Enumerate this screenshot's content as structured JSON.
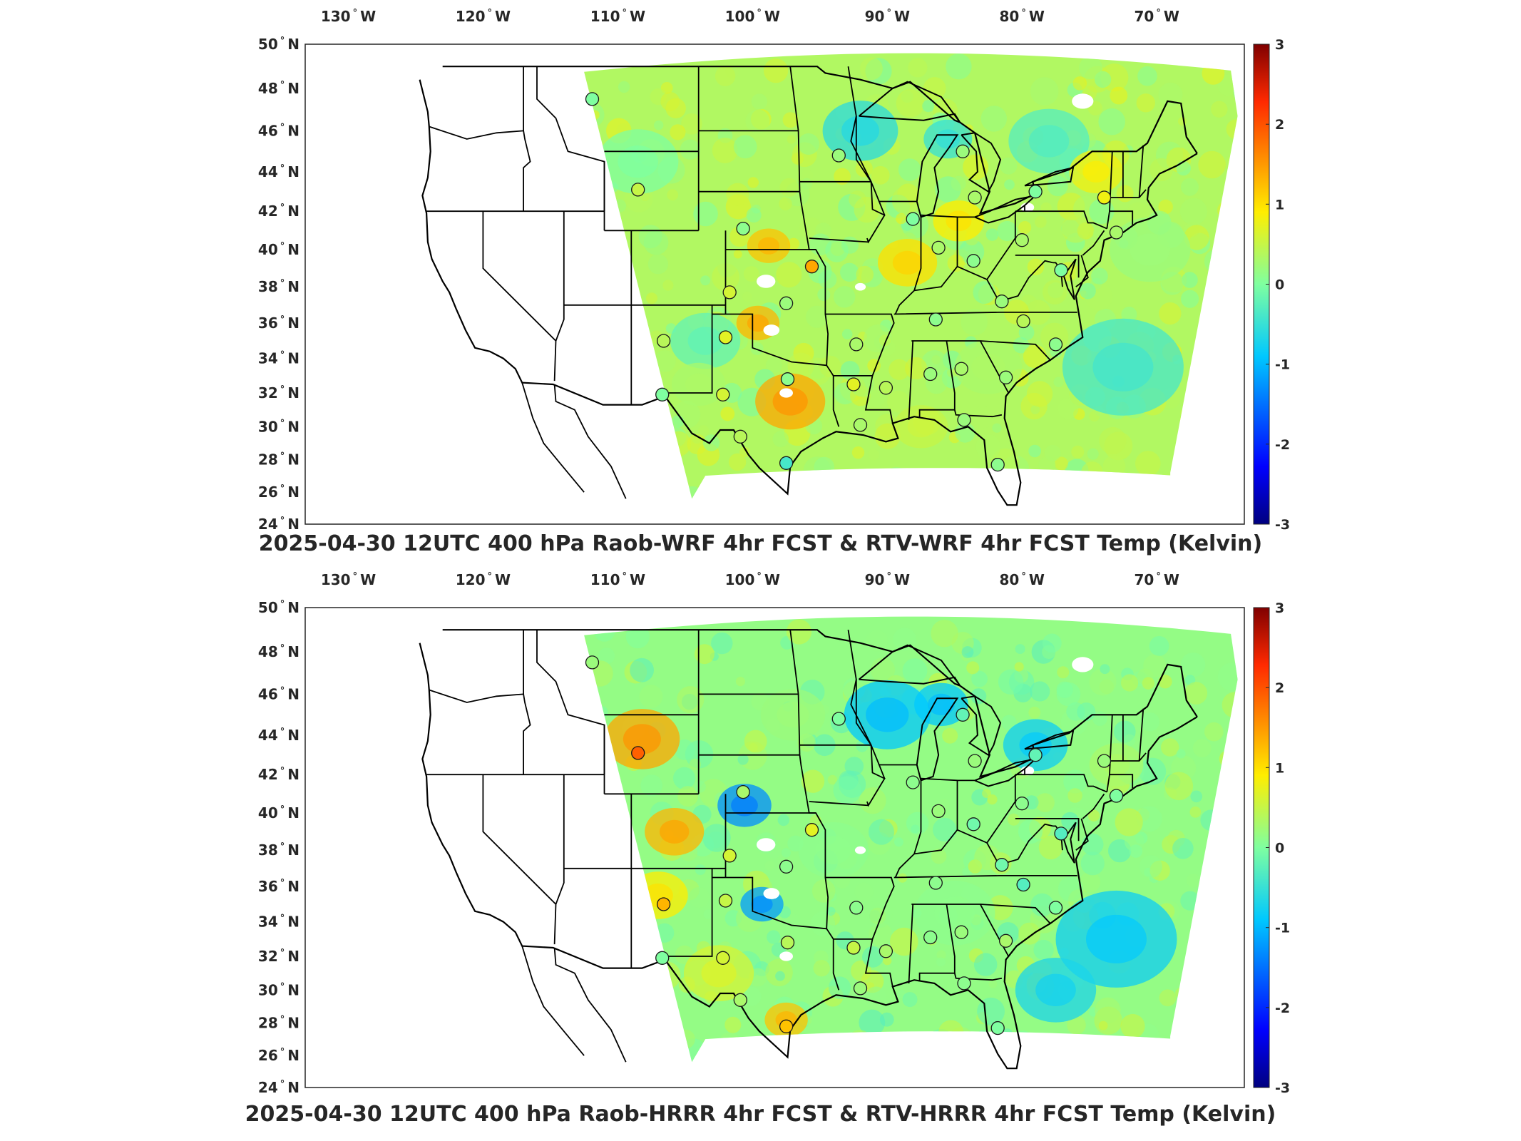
{
  "colors": {
    "very_cold": "#00007f",
    "cold": "#0066ff",
    "cool": "#33ccff",
    "neutral": "#7fffb0",
    "warm": "#ffee22",
    "hot": "#ff6600",
    "very_hot": "#800000",
    "boundary": "#000000",
    "frame": "#262626"
  },
  "lon_ticks": [
    "130",
    "120",
    "110",
    "100",
    "90",
    "80",
    "70"
  ],
  "lon_suffix": "W",
  "lat_ticks": [
    "50",
    "48",
    "46",
    "44",
    "42",
    "40",
    "38",
    "36",
    "34",
    "32",
    "30",
    "28",
    "26",
    "24"
  ],
  "lat_suffix": "N",
  "degree_mark": "°",
  "colorbar": {
    "ticks": [
      "3",
      "2",
      "1",
      "0",
      "-1",
      "-2",
      "-3"
    ],
    "range": [
      -3,
      3
    ]
  },
  "panels": [
    {
      "id": "wrf",
      "title": "2025-04-30 12UTC 400 hPa Raob-WRF 4hr FCST & RTV-WRF 4hr FCST Temp (Kelvin)",
      "stations": [
        {
          "lon": -111.9,
          "lat": 47.5,
          "value": 0.0
        },
        {
          "lon": -108.5,
          "lat": 43.1,
          "value": 0.5
        },
        {
          "lon": -100.7,
          "lat": 41.1,
          "value": 0.1
        },
        {
          "lon": -95.6,
          "lat": 39.1,
          "value": 1.4
        },
        {
          "lon": -93.6,
          "lat": 44.8,
          "value": 0.2
        },
        {
          "lon": -88.1,
          "lat": 41.6,
          "value": 0.0
        },
        {
          "lon": -86.2,
          "lat": 40.1,
          "value": 0.3
        },
        {
          "lon": -84.4,
          "lat": 45.0,
          "value": 0.2
        },
        {
          "lon": -83.5,
          "lat": 42.7,
          "value": 0.3
        },
        {
          "lon": -79.0,
          "lat": 43.0,
          "value": 0.0
        },
        {
          "lon": -73.9,
          "lat": 42.7,
          "value": 0.8
        },
        {
          "lon": -80.0,
          "lat": 40.5,
          "value": 0.3
        },
        {
          "lon": -83.6,
          "lat": 39.4,
          "value": 0.1
        },
        {
          "lon": -101.7,
          "lat": 37.7,
          "value": 0.6
        },
        {
          "lon": -97.5,
          "lat": 37.1,
          "value": 0.2
        },
        {
          "lon": -106.6,
          "lat": 35.0,
          "value": 0.4
        },
        {
          "lon": -102.0,
          "lat": 35.2,
          "value": 0.7
        },
        {
          "lon": -97.4,
          "lat": 32.8,
          "value": 0.1
        },
        {
          "lon": -92.3,
          "lat": 34.8,
          "value": 0.3
        },
        {
          "lon": -92.5,
          "lat": 32.5,
          "value": 0.7
        },
        {
          "lon": -90.1,
          "lat": 32.3,
          "value": 0.4
        },
        {
          "lon": -86.8,
          "lat": 33.1,
          "value": 0.2
        },
        {
          "lon": -84.5,
          "lat": 33.4,
          "value": 0.3
        },
        {
          "lon": -86.4,
          "lat": 36.2,
          "value": 0.1
        },
        {
          "lon": -81.5,
          "lat": 37.2,
          "value": 0.2
        },
        {
          "lon": -79.9,
          "lat": 36.1,
          "value": 0.4
        },
        {
          "lon": -77.5,
          "lat": 34.8,
          "value": 0.1
        },
        {
          "lon": -81.2,
          "lat": 32.9,
          "value": 0.2
        },
        {
          "lon": -106.7,
          "lat": 31.9,
          "value": 0.0
        },
        {
          "lon": -102.2,
          "lat": 31.9,
          "value": 0.6
        },
        {
          "lon": -100.9,
          "lat": 29.4,
          "value": 0.4
        },
        {
          "lon": -97.5,
          "lat": 27.8,
          "value": -0.4
        },
        {
          "lon": -92.0,
          "lat": 30.1,
          "value": 0.3
        },
        {
          "lon": -84.3,
          "lat": 30.4,
          "value": 0.2
        },
        {
          "lon": -81.8,
          "lat": 27.7,
          "value": 0.1
        },
        {
          "lon": -77.1,
          "lat": 38.9,
          "value": 0.0
        },
        {
          "lon": -73.0,
          "lat": 40.9,
          "value": 0.3
        }
      ]
    },
    {
      "id": "hrrr",
      "title": "2025-04-30 12UTC 400 hPa Raob-HRRR 4hr FCST & RTV-HRRR 4hr FCST Temp (Kelvin)",
      "stations": [
        {
          "lon": -111.9,
          "lat": 47.5,
          "value": 0.2
        },
        {
          "lon": -108.5,
          "lat": 43.1,
          "value": 1.9
        },
        {
          "lon": -100.7,
          "lat": 41.1,
          "value": 0.3
        },
        {
          "lon": -95.6,
          "lat": 39.1,
          "value": 0.7
        },
        {
          "lon": -93.6,
          "lat": 44.8,
          "value": 0.0
        },
        {
          "lon": -88.1,
          "lat": 41.6,
          "value": 0.1
        },
        {
          "lon": -86.2,
          "lat": 40.1,
          "value": 0.2
        },
        {
          "lon": -84.4,
          "lat": 45.0,
          "value": -0.2
        },
        {
          "lon": -83.5,
          "lat": 42.7,
          "value": 0.2
        },
        {
          "lon": -79.0,
          "lat": 43.0,
          "value": -0.2
        },
        {
          "lon": -73.9,
          "lat": 42.7,
          "value": 0.2
        },
        {
          "lon": -80.0,
          "lat": 40.5,
          "value": 0.1
        },
        {
          "lon": -83.6,
          "lat": 39.4,
          "value": -0.1
        },
        {
          "lon": -101.7,
          "lat": 37.7,
          "value": 0.6
        },
        {
          "lon": -97.5,
          "lat": 37.1,
          "value": 0.1
        },
        {
          "lon": -106.6,
          "lat": 35.0,
          "value": 1.3
        },
        {
          "lon": -102.0,
          "lat": 35.2,
          "value": 0.5
        },
        {
          "lon": -97.4,
          "lat": 32.8,
          "value": 0.4
        },
        {
          "lon": -92.3,
          "lat": 34.8,
          "value": 0.1
        },
        {
          "lon": -92.5,
          "lat": 32.5,
          "value": 0.5
        },
        {
          "lon": -90.1,
          "lat": 32.3,
          "value": 0.3
        },
        {
          "lon": -86.8,
          "lat": 33.1,
          "value": 0.1
        },
        {
          "lon": -84.5,
          "lat": 33.4,
          "value": 0.2
        },
        {
          "lon": -86.4,
          "lat": 36.2,
          "value": 0.1
        },
        {
          "lon": -81.5,
          "lat": 37.2,
          "value": -0.1
        },
        {
          "lon": -79.9,
          "lat": 36.1,
          "value": -0.3
        },
        {
          "lon": -77.5,
          "lat": 34.8,
          "value": 0.0
        },
        {
          "lon": -81.2,
          "lat": 32.9,
          "value": 0.3
        },
        {
          "lon": -106.7,
          "lat": 31.9,
          "value": 0.0
        },
        {
          "lon": -102.2,
          "lat": 31.9,
          "value": 0.6
        },
        {
          "lon": -100.9,
          "lat": 29.4,
          "value": 0.3
        },
        {
          "lon": -97.5,
          "lat": 27.8,
          "value": 1.2
        },
        {
          "lon": -92.0,
          "lat": 30.1,
          "value": 0.2
        },
        {
          "lon": -84.3,
          "lat": 30.4,
          "value": 0.1
        },
        {
          "lon": -81.8,
          "lat": 27.7,
          "value": 0.0
        },
        {
          "lon": -77.1,
          "lat": 38.9,
          "value": -0.3
        },
        {
          "lon": -73.0,
          "lat": 40.9,
          "value": 0.0
        }
      ]
    }
  ]
}
